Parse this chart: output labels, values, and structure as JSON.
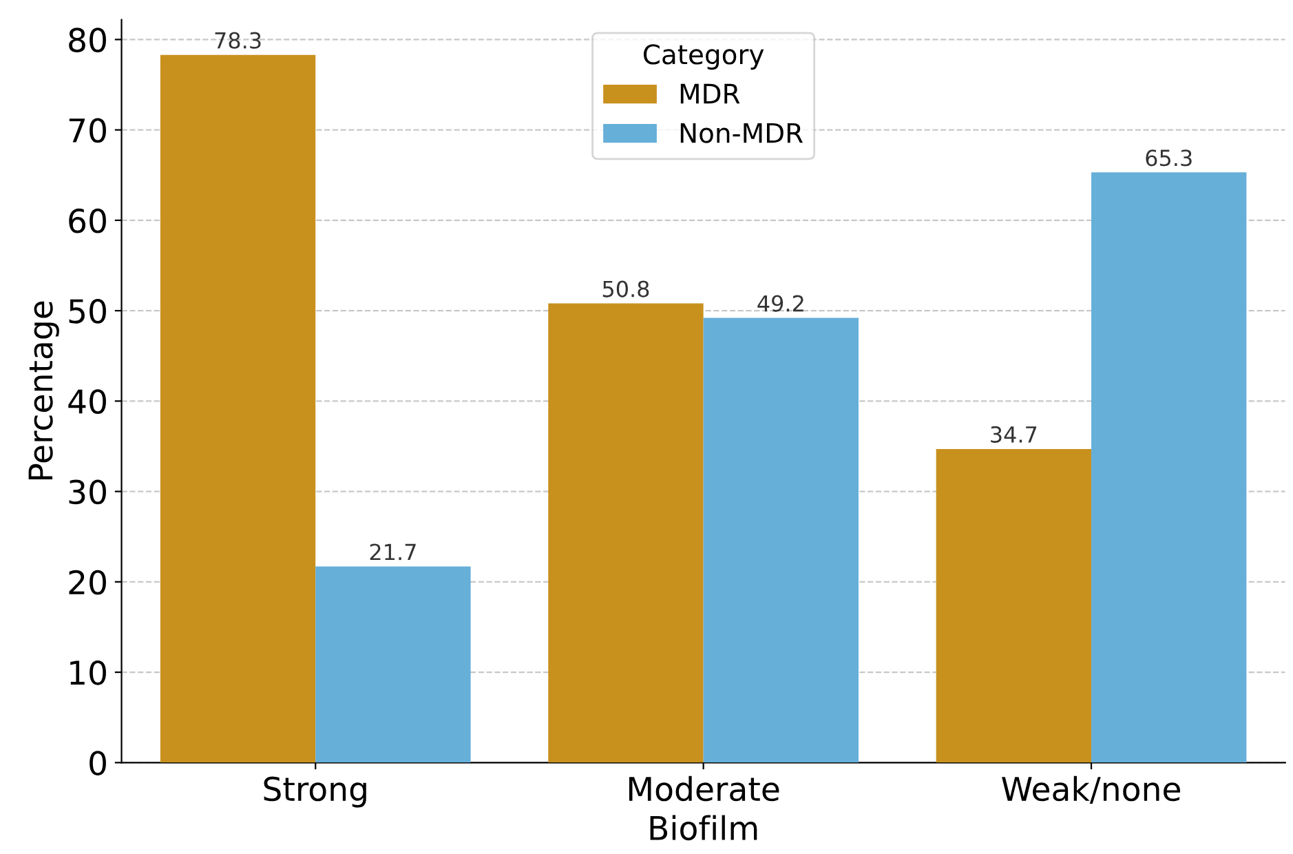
{
  "chart_data": {
    "type": "bar",
    "xlabel": "Biofilm",
    "ylabel": "Percentage",
    "legend_title": "Category",
    "categories": [
      "Strong",
      "Moderate",
      "Weak/none"
    ],
    "series": [
      {
        "name": "MDR",
        "color": "#c8911e",
        "values": [
          78.3,
          50.8,
          34.7
        ]
      },
      {
        "name": "Non-MDR",
        "color": "#66afd9",
        "values": [
          21.7,
          49.2,
          65.3
        ]
      }
    ],
    "ylim": [
      0,
      82.2
    ],
    "yticks": [
      0,
      10,
      20,
      30,
      40,
      50,
      60,
      70,
      80
    ],
    "grid": "y",
    "legend": "top",
    "data_labels": true
  }
}
